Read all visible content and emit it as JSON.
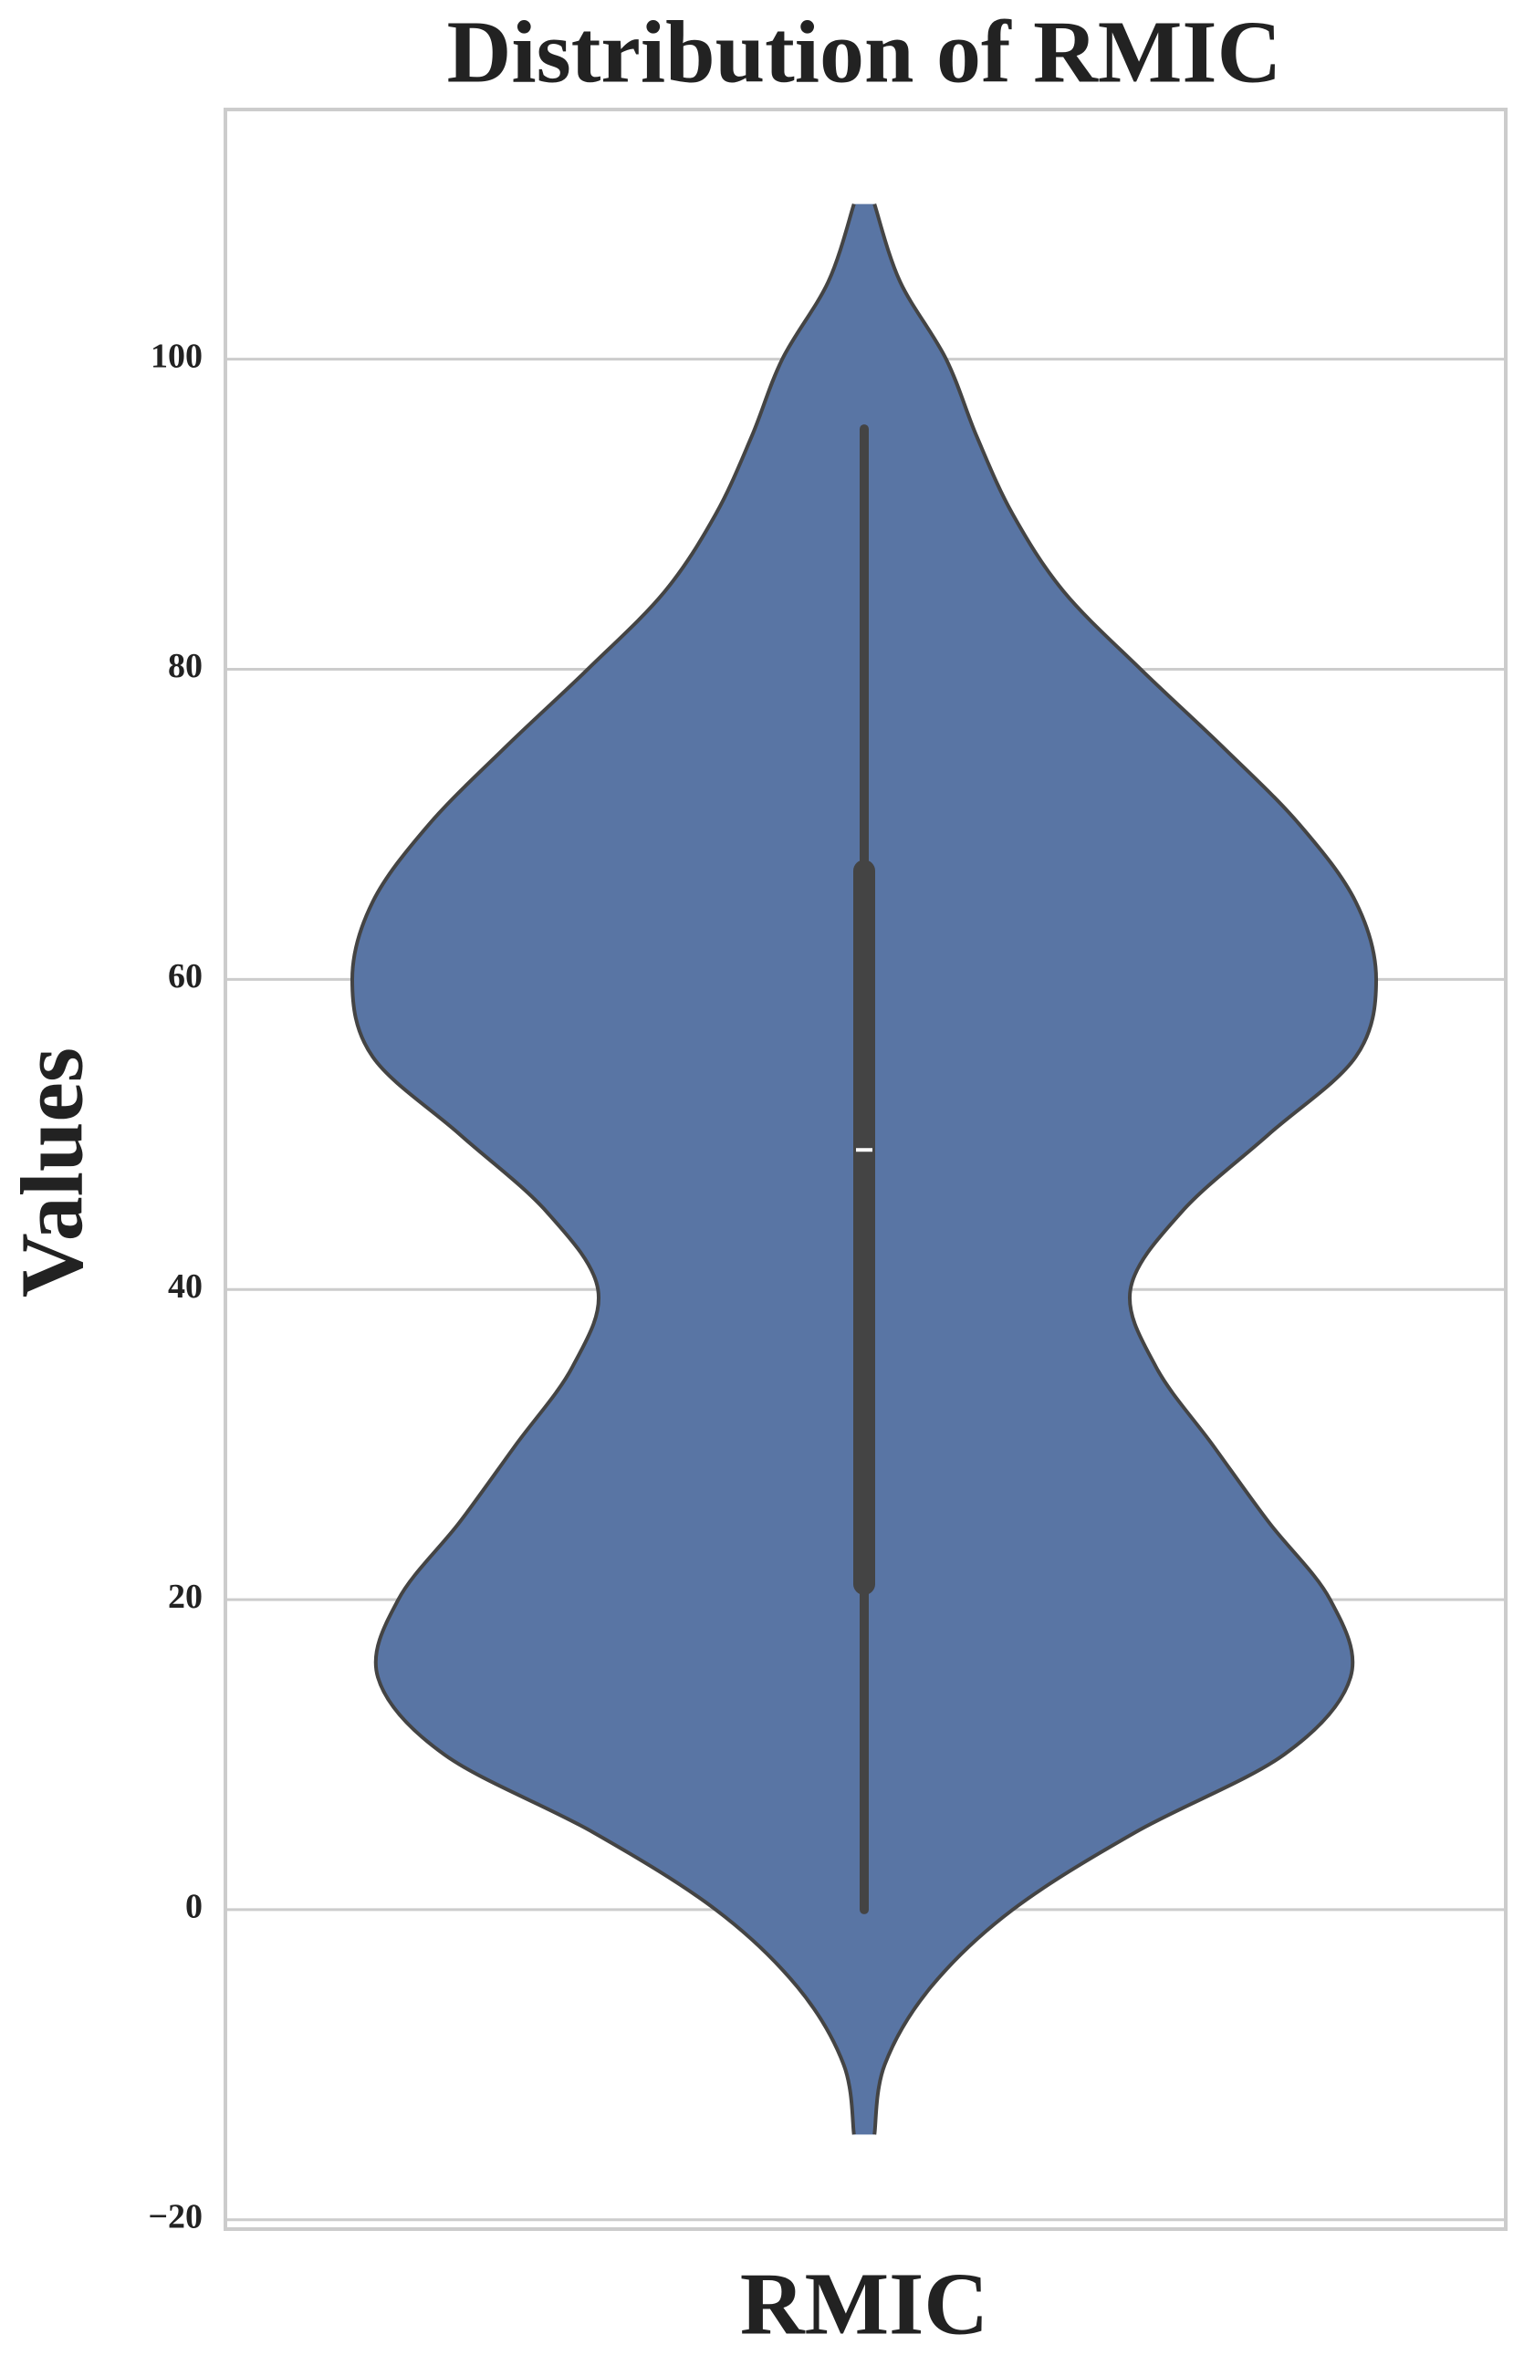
{
  "chart_data": {
    "type": "violin",
    "title": "Distribution of RMIC",
    "x_label": "RMIC",
    "y_label": "Values",
    "ylim": [
      -20.6,
      116.1
    ],
    "yticks": [
      {
        "value": -20,
        "label": "−20"
      },
      0,
      20,
      40,
      60,
      80,
      100
    ],
    "grid": true,
    "color": "#5975a4",
    "edge_color": "#444444",
    "violin": {
      "y": [
        110,
        105,
        100,
        95,
        90,
        85,
        80,
        75,
        70,
        65,
        60,
        55,
        50,
        45,
        40,
        35,
        30,
        25,
        20,
        15,
        10,
        5,
        0,
        -5,
        -10,
        -14.5
      ],
      "density": [
        0.02,
        0.07,
        0.16,
        0.22,
        0.29,
        0.39,
        0.54,
        0.7,
        0.85,
        0.96,
        1.0,
        0.96,
        0.79,
        0.62,
        0.52,
        0.57,
        0.68,
        0.79,
        0.91,
        0.95,
        0.82,
        0.53,
        0.29,
        0.13,
        0.04,
        0.02
      ]
    },
    "box": {
      "whisker_low": 0,
      "q1": 21,
      "median": 49,
      "q3": 67,
      "whisker_high": 95.5
    }
  }
}
